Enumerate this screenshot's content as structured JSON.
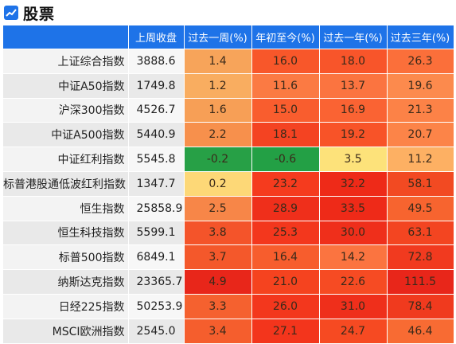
{
  "page": {
    "title": "股票",
    "icon": "trend-chart-icon"
  },
  "table": {
    "columns": [
      "",
      "上周收盘",
      "过去一周(%)",
      "年初至今(%)",
      "过去一年(%)",
      "过去三年(%)"
    ],
    "rows": [
      {
        "name": "上证综合指数",
        "close": "3888.6",
        "w1": "1.4",
        "ytd": "16.0",
        "y1": "18.0",
        "y3": "26.3",
        "colors": {
          "w1": "#f7a45a",
          "ytd": "#f8572a",
          "y1": "#f8552a",
          "y3": "#fb6f3a"
        }
      },
      {
        "name": "中证A50指数",
        "close": "1749.8",
        "w1": "1.2",
        "ytd": "11.6",
        "y1": "13.7",
        "y3": "19.6",
        "colors": {
          "w1": "#f9ad60",
          "ytd": "#fb7a43",
          "y1": "#fb7440",
          "y3": "#fc8a4d"
        }
      },
      {
        "name": "沪深300指数",
        "close": "4526.7",
        "w1": "1.6",
        "ytd": "15.0",
        "y1": "16.9",
        "y3": "21.3",
        "colors": {
          "w1": "#f79f56",
          "ytd": "#f95d2e",
          "y1": "#fa6333",
          "y3": "#fc8247"
        }
      },
      {
        "name": "中证A500指数",
        "close": "5440.9",
        "w1": "2.2",
        "ytd": "18.1",
        "y1": "19.2",
        "y3": "20.7",
        "colors": {
          "w1": "#f7904c",
          "ytd": "#f44322",
          "y1": "#f85328",
          "y3": "#fc8448"
        }
      },
      {
        "name": "中证红利指数",
        "close": "5545.8",
        "w1": "-0.2",
        "ytd": "-0.6",
        "y1": "3.5",
        "y3": "11.2",
        "colors": {
          "w1": "#27a046",
          "ytd": "#23a045",
          "y1": "#fde27a",
          "y3": "#fdb063"
        }
      },
      {
        "name": "标普港股通低波红利指数",
        "close": "1347.7",
        "w1": "0.2",
        "ytd": "23.2",
        "y1": "32.2",
        "y3": "58.1",
        "colors": {
          "w1": "#fdd877",
          "ytd": "#f53b1e",
          "y1": "#ee2a18",
          "y3": "#f24a22"
        }
      },
      {
        "name": "恒生指数",
        "close": "25858.9",
        "w1": "2.5",
        "ytd": "28.9",
        "y1": "33.5",
        "y3": "49.5",
        "colors": {
          "w1": "#f78648",
          "ytd": "#ef2f1b",
          "y1": "#ee2a18",
          "y3": "#f7642f"
        }
      },
      {
        "name": "恒生科技指数",
        "close": "5599.1",
        "w1": "3.8",
        "ytd": "25.3",
        "y1": "30.0",
        "y3": "63.1",
        "colors": {
          "w1": "#f4542a",
          "ytd": "#f3371d",
          "y1": "#ef2f1b",
          "y3": "#f34521"
        }
      },
      {
        "name": "标普500指数",
        "close": "6849.1",
        "w1": "3.7",
        "ytd": "16.4",
        "y1": "14.2",
        "y3": "72.8",
        "colors": {
          "w1": "#f4582b",
          "ytd": "#f75d2d",
          "y1": "#fb7440",
          "y3": "#f13a1f"
        }
      },
      {
        "name": "纳斯达克指数",
        "close": "23365.7",
        "w1": "4.9",
        "ytd": "21.0",
        "y1": "22.6",
        "y3": "111.5",
        "colors": {
          "w1": "#e8261a",
          "ytd": "#f5431f",
          "y1": "#f64b23",
          "y3": "#e8261a"
        }
      },
      {
        "name": "日经225指数",
        "close": "50253.9",
        "w1": "3.3",
        "ytd": "26.0",
        "y1": "31.0",
        "y3": "78.4",
        "colors": {
          "w1": "#f5612f",
          "ytd": "#f3371d",
          "y1": "#ef2f1b",
          "y3": "#f03a1e"
        }
      },
      {
        "name": "MSCI欧洲指数",
        "close": "2545.0",
        "w1": "3.4",
        "ytd": "27.1",
        "y1": "24.7",
        "y3": "46.4",
        "colors": {
          "w1": "#f55e2d",
          "ytd": "#f3351c",
          "y1": "#f64a22",
          "y3": "#f86b33"
        }
      }
    ]
  }
}
